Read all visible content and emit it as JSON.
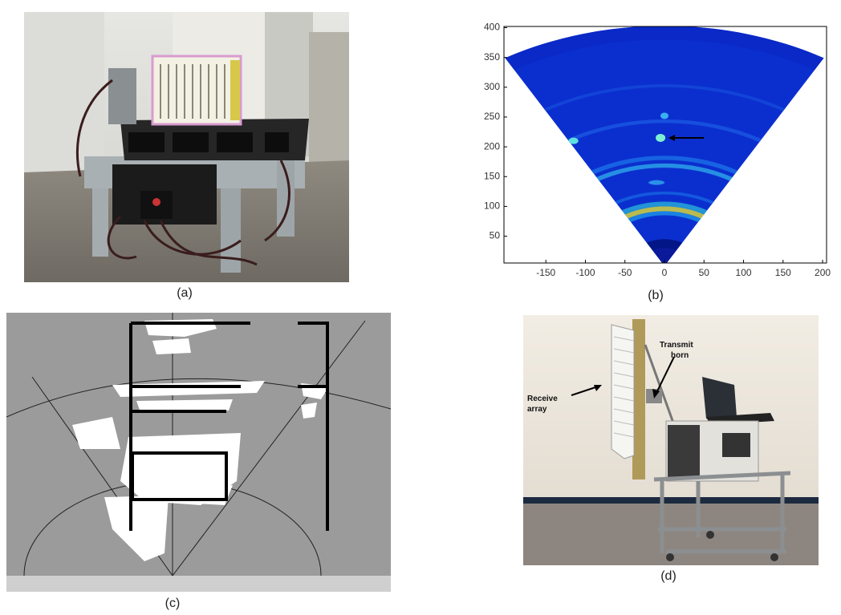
{
  "chart_data": {
    "type": "fan-image",
    "xlim": [
      -203,
      205
    ],
    "ylim": [
      5,
      402
    ],
    "xticks": [
      -150,
      -100,
      -50,
      0,
      50,
      100,
      150,
      200
    ],
    "yticks": [
      50,
      100,
      150,
      200,
      250,
      300,
      350,
      400
    ]
  },
  "figure": {
    "captions": [
      "(a)",
      "(b)",
      "(c)",
      "(d)"
    ],
    "annotations": [
      {
        "lines": [
          "Transmit",
          "horn"
        ]
      },
      {
        "lines": [
          "Receive",
          "array"
        ]
      }
    ]
  }
}
